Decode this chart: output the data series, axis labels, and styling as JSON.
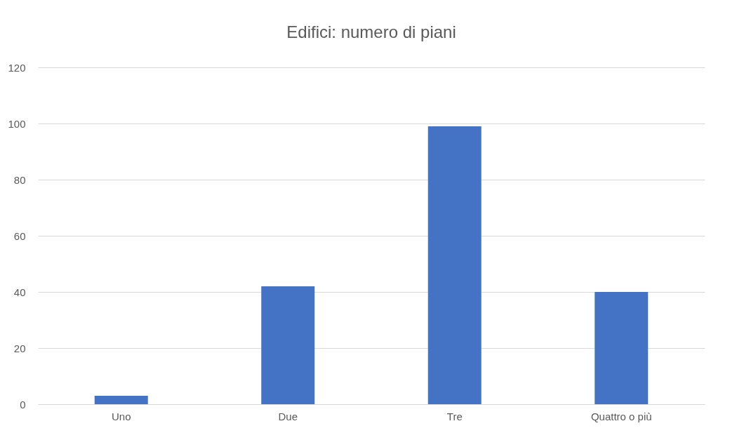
{
  "chart_data": {
    "type": "bar",
    "title": "Edifici: numero di piani",
    "categories": [
      "Uno",
      "Due",
      "Tre",
      "Quattro o più"
    ],
    "values": [
      3,
      42,
      99,
      40
    ],
    "color": "#4472c4",
    "ylim": [
      0,
      120
    ],
    "yticks": [
      0,
      20,
      40,
      60,
      80,
      100,
      120
    ],
    "grid": "y"
  }
}
